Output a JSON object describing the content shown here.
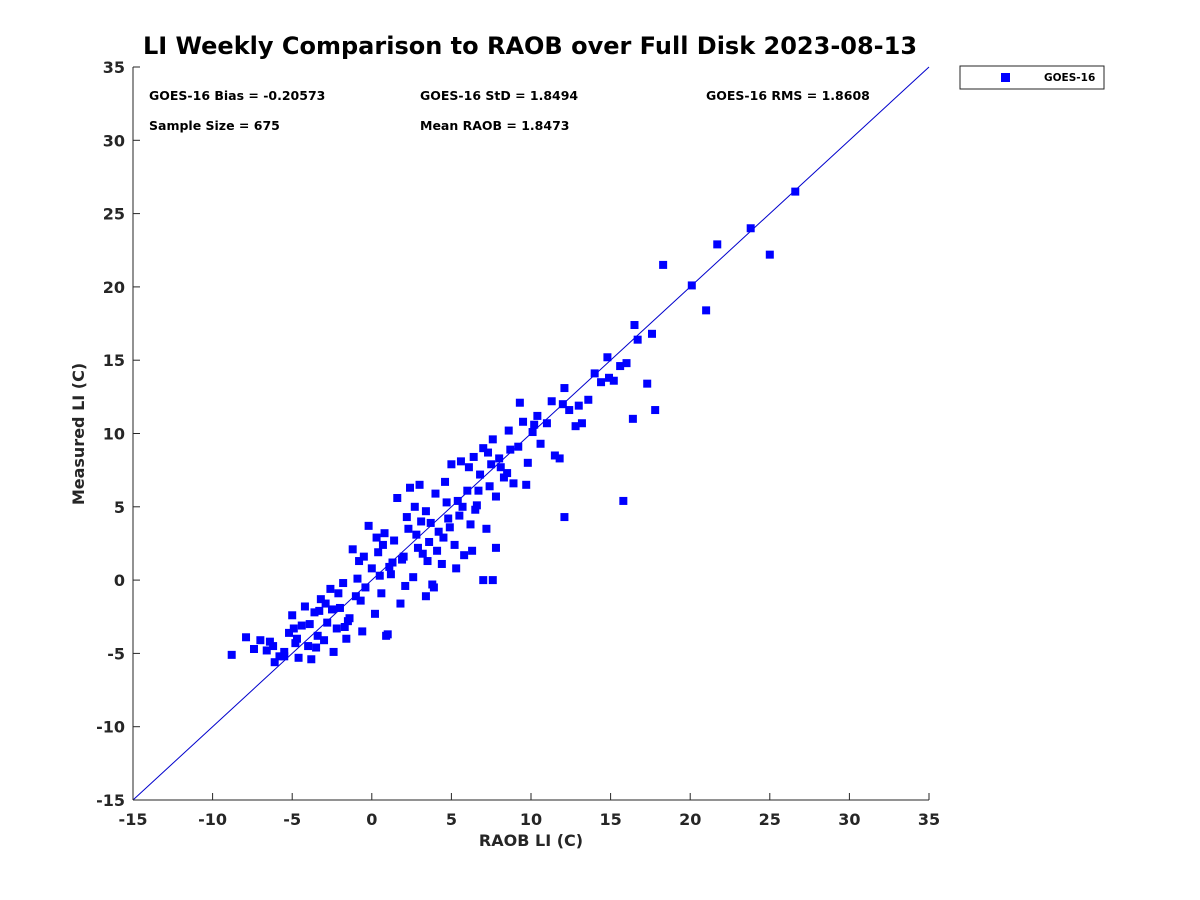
{
  "chart_data": {
    "type": "scatter",
    "title": "LI Weekly Comparison to RAOB over Full Disk 2023-08-13",
    "xlabel": "RAOB LI (C)",
    "ylabel": "Measured LI (C)",
    "xlim": [
      -15,
      35
    ],
    "ylim": [
      -15,
      35
    ],
    "xticks": [
      -15,
      -10,
      -5,
      0,
      5,
      10,
      15,
      20,
      25,
      30,
      35
    ],
    "yticks": [
      -15,
      -10,
      -5,
      0,
      5,
      10,
      15,
      20,
      25,
      30,
      35
    ],
    "xtick_labels": [
      "-15",
      "-10",
      "-5",
      "0",
      "5",
      "10",
      "15",
      "20",
      "25",
      "30",
      "35"
    ],
    "ytick_labels": [
      "-15",
      "-10",
      "-5",
      "0",
      "5",
      "10",
      "15",
      "20",
      "25",
      "30",
      "35"
    ],
    "grid": false,
    "reference_line": {
      "from": [
        -15,
        -15
      ],
      "to": [
        35,
        35
      ],
      "color": "#0000cc"
    },
    "stats": {
      "bias": "GOES-16 Bias = -0.20573",
      "std": "GOES-16 StD = 1.8494",
      "rms": "GOES-16 RMS = 1.8608",
      "sample_size": "Sample Size = 675",
      "mean_raob": "Mean RAOB = 1.8473"
    },
    "legend": {
      "entries": [
        "GOES-16"
      ],
      "placement": "outside-top-right"
    },
    "series": [
      {
        "name": "GOES-16",
        "color": "#0000ff",
        "marker": "square",
        "points": [
          [
            -8.8,
            -5.1
          ],
          [
            -7.9,
            -3.9
          ],
          [
            -7.4,
            -4.7
          ],
          [
            -7.0,
            -4.1
          ],
          [
            -6.6,
            -4.8
          ],
          [
            -6.4,
            -4.2
          ],
          [
            -6.1,
            -5.6
          ],
          [
            -5.8,
            -5.2
          ],
          [
            -5.5,
            -4.9
          ],
          [
            -5.2,
            -3.6
          ],
          [
            -5.0,
            -2.4
          ],
          [
            -4.8,
            -4.3
          ],
          [
            -4.6,
            -5.3
          ],
          [
            -4.4,
            -3.1
          ],
          [
            -4.2,
            -1.8
          ],
          [
            -4.0,
            -4.5
          ],
          [
            -3.8,
            -5.4
          ],
          [
            -3.6,
            -2.2
          ],
          [
            -3.4,
            -3.8
          ],
          [
            -3.2,
            -1.3
          ],
          [
            -3.0,
            -4.1
          ],
          [
            -2.8,
            -2.9
          ],
          [
            -2.6,
            -0.6
          ],
          [
            -2.4,
            -4.9
          ],
          [
            -2.2,
            -3.3
          ],
          [
            -2.0,
            -1.9
          ],
          [
            -1.8,
            -0.2
          ],
          [
            -1.6,
            -4.0
          ],
          [
            -1.4,
            -2.6
          ],
          [
            -1.2,
            2.1
          ],
          [
            -1.0,
            -1.1
          ],
          [
            -0.8,
            1.3
          ],
          [
            -0.6,
            -3.5
          ],
          [
            -0.4,
            -0.5
          ],
          [
            -0.2,
            3.7
          ],
          [
            0.0,
            0.8
          ],
          [
            0.2,
            -2.3
          ],
          [
            0.4,
            1.9
          ],
          [
            0.6,
            -0.9
          ],
          [
            0.8,
            3.2
          ],
          [
            1.0,
            -3.7
          ],
          [
            1.2,
            0.4
          ],
          [
            1.4,
            2.7
          ],
          [
            1.6,
            5.6
          ],
          [
            1.8,
            -1.6
          ],
          [
            2.0,
            1.6
          ],
          [
            2.2,
            4.3
          ],
          [
            2.4,
            6.3
          ],
          [
            2.6,
            0.2
          ],
          [
            2.8,
            3.1
          ],
          [
            3.0,
            6.5
          ],
          [
            3.2,
            1.8
          ],
          [
            3.4,
            4.7
          ],
          [
            3.6,
            2.6
          ],
          [
            3.8,
            -0.3
          ],
          [
            4.0,
            5.9
          ],
          [
            4.2,
            3.3
          ],
          [
            4.4,
            1.1
          ],
          [
            4.6,
            6.7
          ],
          [
            4.8,
            4.2
          ],
          [
            5.0,
            7.9
          ],
          [
            5.2,
            2.4
          ],
          [
            5.4,
            5.4
          ],
          [
            5.6,
            8.1
          ],
          [
            5.8,
            1.7
          ],
          [
            6.0,
            6.1
          ],
          [
            6.2,
            3.8
          ],
          [
            6.4,
            8.4
          ],
          [
            6.6,
            5.1
          ],
          [
            6.8,
            7.2
          ],
          [
            7.0,
            9.0
          ],
          [
            7.2,
            3.5
          ],
          [
            7.4,
            6.4
          ],
          [
            7.6,
            9.6
          ],
          [
            7.8,
            5.7
          ],
          [
            8.0,
            8.3
          ],
          [
            8.3,
            7.0
          ],
          [
            8.6,
            10.2
          ],
          [
            8.9,
            6.6
          ],
          [
            9.2,
            9.1
          ],
          [
            9.5,
            10.8
          ],
          [
            9.8,
            8.0
          ],
          [
            10.2,
            10.6
          ],
          [
            10.6,
            9.3
          ],
          [
            11.0,
            10.7
          ],
          [
            11.5,
            8.5
          ],
          [
            12.0,
            12.0
          ],
          [
            12.4,
            11.6
          ],
          [
            12.8,
            10.5
          ],
          [
            13.2,
            10.7
          ],
          [
            13.6,
            12.3
          ],
          [
            14.0,
            14.1
          ],
          [
            14.4,
            13.5
          ],
          [
            14.8,
            15.2
          ],
          [
            15.2,
            13.6
          ],
          [
            15.6,
            14.6
          ],
          [
            16.0,
            14.8
          ],
          [
            16.5,
            17.4
          ],
          [
            16.7,
            16.4
          ],
          [
            17.3,
            13.4
          ],
          [
            17.6,
            16.8
          ],
          [
            17.8,
            11.6
          ],
          [
            16.4,
            11.0
          ],
          [
            15.8,
            5.4
          ],
          [
            12.1,
            4.3
          ],
          [
            11.8,
            8.3
          ],
          [
            9.7,
            6.5
          ],
          [
            7.8,
            2.2
          ],
          [
            7.6,
            0.0
          ],
          [
            7.0,
            0.0
          ],
          [
            6.3,
            2.0
          ],
          [
            5.3,
            0.8
          ],
          [
            3.9,
            -0.5
          ],
          [
            3.4,
            -1.1
          ],
          [
            0.9,
            -3.8
          ],
          [
            21.0,
            18.4
          ],
          [
            20.1,
            20.1
          ],
          [
            18.3,
            21.5
          ],
          [
            21.7,
            22.9
          ],
          [
            23.8,
            24.0
          ],
          [
            25.0,
            22.2
          ],
          [
            26.6,
            26.5
          ],
          [
            -5.5,
            -5.2
          ],
          [
            -3.9,
            -3.0
          ],
          [
            -2.9,
            -1.6
          ],
          [
            -1.7,
            -3.2
          ],
          [
            -0.9,
            0.1
          ],
          [
            0.3,
            2.9
          ],
          [
            1.1,
            0.9
          ],
          [
            2.1,
            -0.4
          ],
          [
            2.9,
            2.2
          ],
          [
            3.7,
            3.9
          ],
          [
            4.5,
            2.9
          ],
          [
            5.5,
            4.4
          ],
          [
            6.7,
            6.1
          ],
          [
            8.1,
            7.7
          ],
          [
            9.3,
            12.1
          ],
          [
            10.1,
            10.1
          ],
          [
            12.1,
            13.1
          ],
          [
            14.9,
            13.8
          ],
          [
            -4.7,
            -4.0
          ],
          [
            -3.5,
            -4.6
          ],
          [
            -2.5,
            -2.0
          ],
          [
            -1.5,
            -2.8
          ],
          [
            -0.7,
            -1.4
          ],
          [
            0.5,
            0.3
          ],
          [
            1.3,
            1.2
          ],
          [
            2.3,
            3.5
          ],
          [
            3.1,
            4.0
          ],
          [
            4.1,
            2.0
          ],
          [
            4.9,
            3.6
          ],
          [
            5.7,
            5.0
          ],
          [
            6.5,
            4.8
          ],
          [
            7.5,
            7.9
          ],
          [
            8.7,
            8.9
          ],
          [
            10.4,
            11.2
          ],
          [
            13.0,
            11.9
          ],
          [
            -6.2,
            -4.5
          ],
          [
            -4.9,
            -3.3
          ],
          [
            -3.3,
            -2.1
          ],
          [
            -2.1,
            -0.9
          ],
          [
            -0.5,
            1.6
          ],
          [
            0.7,
            2.4
          ],
          [
            1.9,
            1.4
          ],
          [
            2.7,
            5.0
          ],
          [
            3.5,
            1.3
          ],
          [
            4.7,
            5.3
          ],
          [
            6.1,
            7.7
          ],
          [
            7.3,
            8.7
          ],
          [
            8.5,
            7.3
          ],
          [
            11.3,
            12.2
          ]
        ]
      }
    ]
  }
}
